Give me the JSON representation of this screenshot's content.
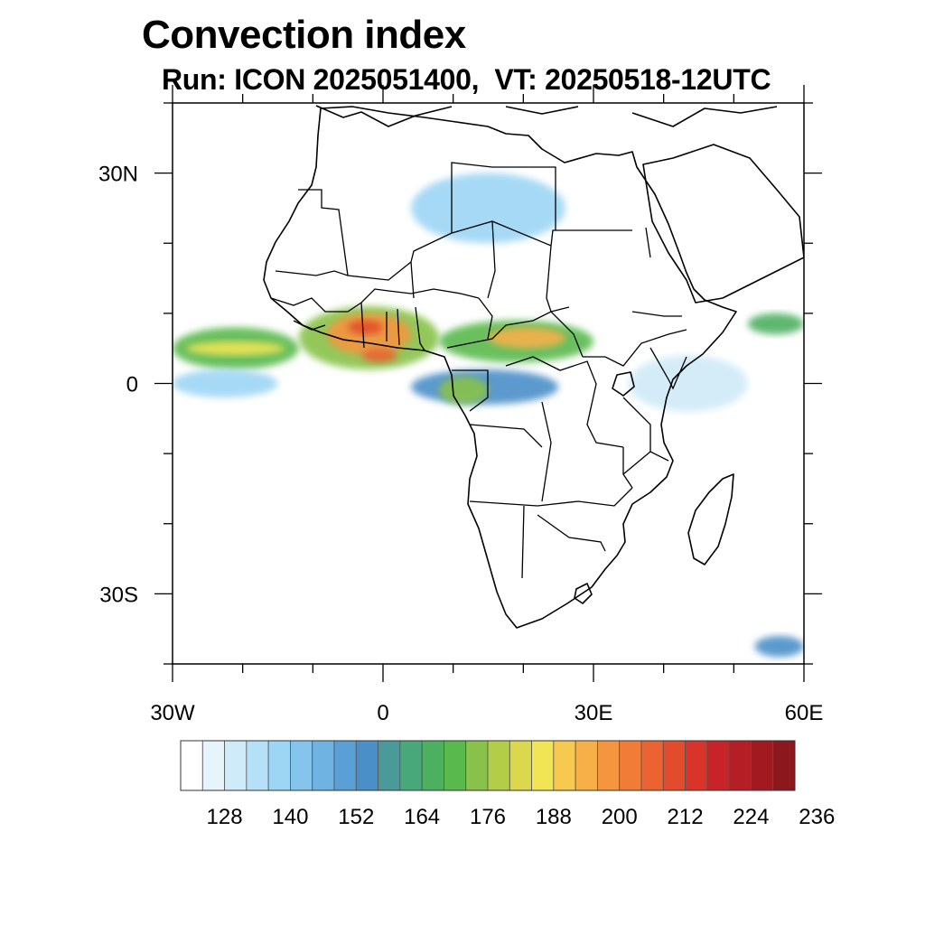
{
  "header": {
    "title": "Convection index",
    "subtitle": "Run: ICON 2025051400,  VT: 20250518-12UTC"
  },
  "map": {
    "projection": "cylindrical-equidistant",
    "lon_range": [
      -30,
      60
    ],
    "lat_range": [
      -40,
      40
    ],
    "lat_ticks": [
      {
        "value": 30,
        "label": "30N"
      },
      {
        "value": 0,
        "label": "0"
      },
      {
        "value": -30,
        "label": "30S"
      }
    ],
    "lon_ticks": [
      {
        "value": -30,
        "label": "30W"
      },
      {
        "value": 0,
        "label": "0"
      },
      {
        "value": 30,
        "label": "30E"
      },
      {
        "value": 60,
        "label": "60E"
      }
    ],
    "regions": [
      {
        "lon": [
          -30,
          -12
        ],
        "lat": [
          2,
          8
        ],
        "value": 164
      },
      {
        "lon": [
          -28,
          -14
        ],
        "lat": [
          4,
          6
        ],
        "value": 182
      },
      {
        "lon": [
          -12,
          8
        ],
        "lat": [
          2,
          11
        ],
        "value": 170
      },
      {
        "lon": [
          -8,
          4
        ],
        "lat": [
          4,
          10
        ],
        "value": 192
      },
      {
        "lon": [
          -5,
          0
        ],
        "lat": [
          7,
          9
        ],
        "value": 205
      },
      {
        "lon": [
          -3,
          2
        ],
        "lat": [
          3,
          5
        ],
        "value": 200
      },
      {
        "lon": [
          8,
          30
        ],
        "lat": [
          3,
          9
        ],
        "value": 166
      },
      {
        "lon": [
          15,
          26
        ],
        "lat": [
          5,
          8
        ],
        "value": 190
      },
      {
        "lon": [
          -30,
          -15
        ],
        "lat": [
          -2,
          2
        ],
        "value": 135
      },
      {
        "lon": [
          4,
          25
        ],
        "lat": [
          -3,
          2
        ],
        "value": 150
      },
      {
        "lon": [
          8,
          15
        ],
        "lat": [
          -3,
          1
        ],
        "value": 168
      },
      {
        "lon": [
          4,
          26
        ],
        "lat": [
          20,
          30
        ],
        "value": 132
      },
      {
        "lon": [
          35,
          52
        ],
        "lat": [
          -4,
          4
        ],
        "value": 126
      },
      {
        "lon": [
          52,
          60
        ],
        "lat": [
          7,
          10
        ],
        "value": 160
      },
      {
        "lon": [
          53,
          60
        ],
        "lat": [
          -39,
          -36
        ],
        "value": 150
      }
    ]
  },
  "colorbar": {
    "colors": [
      "#ffffff",
      "#e6f4fc",
      "#cfeaf8",
      "#b6e0f7",
      "#9dd5f4",
      "#85c4ec",
      "#6eb3e2",
      "#5a9fd6",
      "#4b8fc8",
      "#4a9a9a",
      "#49a87a",
      "#4db060",
      "#5ab94d",
      "#88c24a",
      "#b4cd49",
      "#dcd84e",
      "#f1e455",
      "#f7c94e",
      "#f7b048",
      "#f49640",
      "#f07c37",
      "#ea6330",
      "#e24b2c",
      "#d93429",
      "#c82328",
      "#b51e24",
      "#a11a20",
      "#8c171c"
    ],
    "tick_labels": [
      "128",
      "140",
      "152",
      "164",
      "176",
      "188",
      "200",
      "212",
      "224",
      "236"
    ],
    "levels": [
      120,
      124,
      128,
      132,
      136,
      140,
      144,
      148,
      152,
      156,
      160,
      164,
      168,
      172,
      176,
      180,
      184,
      188,
      192,
      196,
      200,
      204,
      208,
      212,
      216,
      220,
      224,
      228,
      232,
      236
    ]
  }
}
